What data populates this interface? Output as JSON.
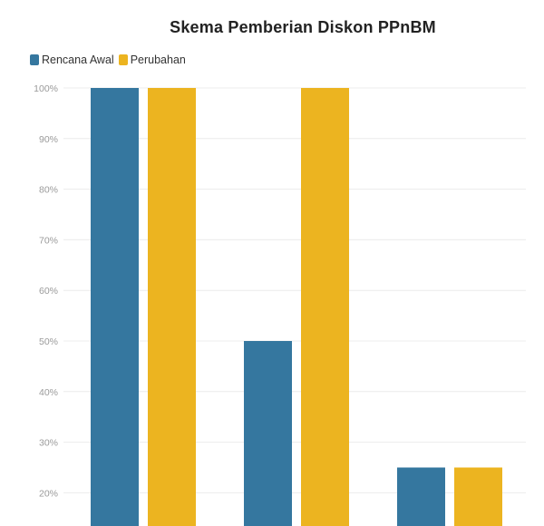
{
  "chart_data": {
    "type": "bar",
    "title": "Skema Pemberian Diskon PPnBM",
    "xlabel": "",
    "ylabel": "",
    "categories": [
      "",
      "",
      ""
    ],
    "series": [
      {
        "name": "Rencana Awal",
        "color": "#35779f",
        "values": [
          100,
          50,
          25
        ]
      },
      {
        "name": "Perubahan",
        "color": "#ecb420",
        "values": [
          100,
          100,
          25
        ]
      }
    ],
    "ylim": [
      10,
      100
    ],
    "yticks": [
      100,
      90,
      80,
      70,
      60,
      50,
      40,
      30,
      20
    ],
    "tick_suffix": "%",
    "grid": true,
    "legend": "top-left"
  }
}
